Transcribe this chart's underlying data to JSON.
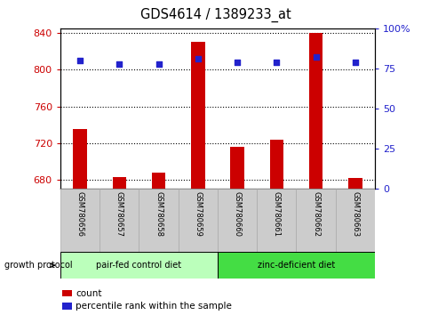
{
  "title": "GDS4614 / 1389233_at",
  "samples": [
    "GSM780656",
    "GSM780657",
    "GSM780658",
    "GSM780659",
    "GSM780660",
    "GSM780661",
    "GSM780662",
    "GSM780663"
  ],
  "counts": [
    735,
    683,
    688,
    830,
    716,
    724,
    840,
    682
  ],
  "percentiles": [
    80,
    78,
    78,
    81,
    79,
    79,
    82,
    79
  ],
  "ylim_left": [
    670,
    845
  ],
  "yticks_left": [
    680,
    720,
    760,
    800,
    840
  ],
  "ylim_right": [
    0,
    100
  ],
  "yticks_right": [
    0,
    25,
    50,
    75,
    100
  ],
  "ytick_labels_right": [
    "0",
    "25",
    "50",
    "75",
    "100%"
  ],
  "bar_color": "#cc0000",
  "dot_color": "#2222cc",
  "group1_label": "pair-fed control diet",
  "group2_label": "zinc-deficient diet",
  "group1_color": "#bbffbb",
  "group2_color": "#44dd44",
  "protocol_label": "growth protocol",
  "legend_count_label": "count",
  "legend_pct_label": "percentile rank within the sample",
  "left_axis_color": "#cc0000",
  "right_axis_color": "#2222cc",
  "bar_bottom": 670,
  "bar_width": 0.35,
  "sample_box_color": "#cccccc",
  "sample_box_edge": "#aaaaaa",
  "gridline_style": ":",
  "gridline_color": "black",
  "gridline_lw": 0.8
}
